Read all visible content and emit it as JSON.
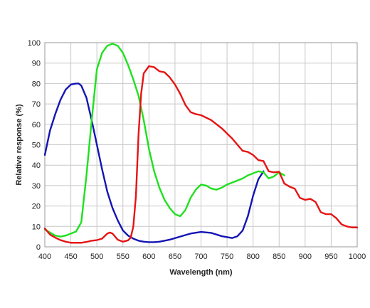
{
  "chart_data": {
    "type": "line",
    "title": "",
    "xlabel": "Wavelength (nm)",
    "ylabel": "Relative response (%)",
    "xlim": [
      400,
      1000
    ],
    "ylim": [
      0,
      100
    ],
    "x_ticks": [
      "400",
      "450",
      "500",
      "550",
      "600",
      "650",
      "700",
      "750",
      "800",
      "850",
      "900",
      "950",
      "1000"
    ],
    "y_ticks": [
      "0",
      "10",
      "20",
      "30",
      "40",
      "50",
      "60",
      "70",
      "80",
      "90",
      "100"
    ],
    "x_tick_values": [
      400,
      450,
      500,
      550,
      600,
      650,
      700,
      750,
      800,
      850,
      900,
      950,
      1000
    ],
    "y_tick_values": [
      0,
      10,
      20,
      30,
      40,
      50,
      60,
      70,
      80,
      90,
      100
    ],
    "grid": true,
    "legend": "none",
    "series": [
      {
        "color": "#1414b4",
        "x": [
          400,
          410,
          420,
          430,
          440,
          450,
          460,
          465,
          470,
          480,
          490,
          500,
          510,
          520,
          530,
          540,
          550,
          560,
          570,
          580,
          590,
          600,
          610,
          620,
          640,
          660,
          680,
          700,
          720,
          740,
          760,
          770,
          780,
          790,
          800,
          810,
          820
        ],
        "y": [
          45,
          57,
          65,
          72,
          77,
          79.5,
          80,
          80,
          79,
          73,
          62,
          50,
          38,
          27,
          19,
          13,
          8,
          5.5,
          4,
          3,
          2.5,
          2.3,
          2.3,
          2.5,
          3.5,
          5,
          6.5,
          7.3,
          6.8,
          5.2,
          4.3,
          5.2,
          8,
          15,
          25,
          33,
          37
        ]
      },
      {
        "color": "#1ee11e",
        "x": [
          400,
          410,
          420,
          430,
          440,
          450,
          460,
          470,
          480,
          490,
          500,
          510,
          520,
          530,
          540,
          550,
          560,
          570,
          580,
          590,
          600,
          610,
          620,
          630,
          640,
          650,
          660,
          670,
          680,
          690,
          700,
          710,
          720,
          730,
          740,
          750,
          760,
          770,
          780,
          790,
          800,
          810,
          820,
          830,
          840,
          850,
          860
        ],
        "y": [
          8.5,
          7,
          5.5,
          5,
          5.5,
          6.5,
          7.5,
          12,
          35,
          62,
          87,
          95,
          98.5,
          99.5,
          98.5,
          95,
          89,
          82,
          74,
          62,
          48,
          37,
          29,
          23,
          19,
          16,
          15,
          18,
          24,
          28,
          30.5,
          30,
          28.5,
          28,
          29,
          30.5,
          31.5,
          32.5,
          33.5,
          35,
          36,
          37,
          36.5,
          33.5,
          34.5,
          36.5,
          35
        ]
      },
      {
        "color": "#e61414",
        "x": [
          400,
          410,
          420,
          430,
          440,
          450,
          460,
          470,
          480,
          490,
          500,
          510,
          520,
          525,
          530,
          540,
          550,
          560,
          565,
          570,
          575,
          580,
          585,
          590,
          600,
          610,
          620,
          630,
          640,
          650,
          660,
          670,
          680,
          690,
          700,
          720,
          740,
          760,
          770,
          780,
          790,
          800,
          810,
          820,
          830,
          840,
          850,
          860,
          870,
          880,
          890,
          900,
          910,
          920,
          930,
          940,
          950,
          960,
          970,
          980,
          990,
          1000
        ],
        "y": [
          9,
          6,
          4.5,
          3.3,
          2.5,
          2,
          2,
          2,
          2.4,
          3,
          3.3,
          4,
          6.5,
          7,
          6.5,
          3.5,
          2.5,
          3.2,
          4.5,
          10,
          25,
          55,
          75,
          85,
          88.5,
          88,
          86,
          85.5,
          83,
          79.5,
          75,
          69.5,
          66,
          65,
          64.5,
          62,
          58,
          53,
          50,
          47,
          46.5,
          45,
          42.5,
          42,
          37,
          36.5,
          36.8,
          31,
          29.5,
          28.5,
          24,
          23,
          23.5,
          22,
          17,
          16,
          16,
          14,
          11,
          10,
          9.5,
          9.5
        ]
      }
    ]
  }
}
